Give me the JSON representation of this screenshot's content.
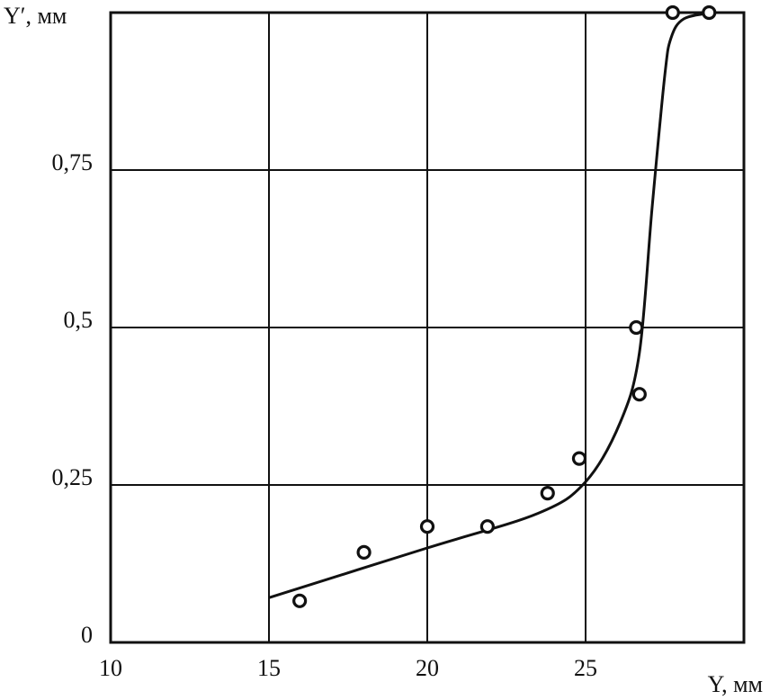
{
  "chart_data": {
    "type": "scatter",
    "x_label": "Y, мм",
    "y_label": "Y′, мм",
    "xlim": [
      10,
      30
    ],
    "ylim": [
      0,
      1
    ],
    "xticks": [
      10,
      15,
      20,
      25
    ],
    "yticks": [
      0,
      {
        "value": 0.25,
        "label": "0,25"
      },
      {
        "value": 0.5,
        "label": "0,5"
      },
      {
        "value": 0.75,
        "label": "0,75"
      }
    ],
    "grid": true,
    "color": "#111111",
    "points": {
      "x": [
        15.97,
        18.0,
        20.0,
        21.9,
        23.8,
        24.8,
        26.6,
        26.7,
        27.75,
        28.9
      ],
      "y": [
        0.066,
        0.143,
        0.184,
        0.184,
        0.237,
        0.292,
        0.5,
        0.394,
        1.0,
        1.0
      ]
    },
    "curve": {
      "x": [
        15,
        20,
        23.5,
        25,
        26.1,
        26.7,
        27.1,
        27.5,
        27.7,
        28.1,
        29
      ],
      "y": [
        0.071,
        0.15,
        0.205,
        0.255,
        0.35,
        0.46,
        0.69,
        0.9,
        0.96,
        0.99,
        1.0
      ]
    }
  }
}
